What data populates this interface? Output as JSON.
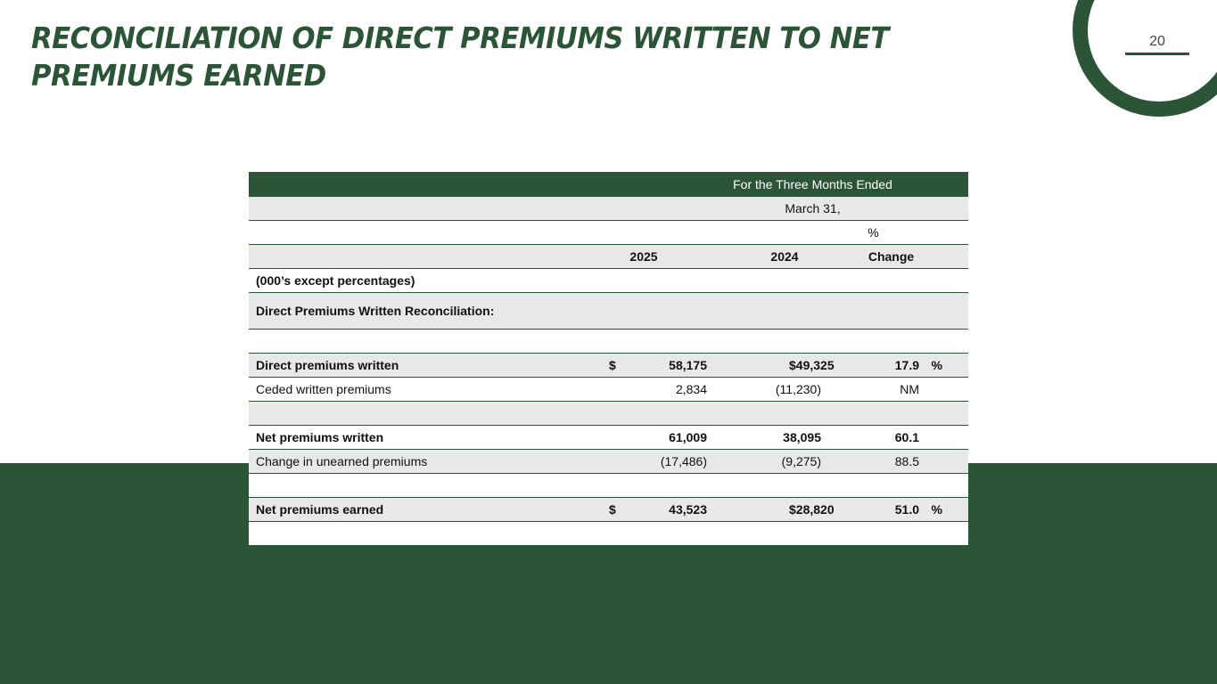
{
  "title": "RECONCILIATION OF DIRECT PREMIUMS WRITTEN TO NET PREMIUMS EARNED",
  "page_number": "20",
  "table": {
    "header_period": "For the Three Months Ended",
    "header_date": "March 31,",
    "header_pct": "%",
    "col_2025": "2025",
    "col_2024": "2024",
    "col_change": "Change",
    "units_note": "(000’s except percentages)",
    "section_label": "Direct Premiums Written Reconciliation:",
    "rows": [
      {
        "label": "Direct premiums written",
        "dollar": "$",
        "v2025": "58,175",
        "v2024": "49,325",
        "change": "17.9",
        "pct": "%"
      },
      {
        "label": "Ceded written premiums",
        "v2025": "2,834",
        "v2024": "(11,230)",
        "change": "NM"
      },
      {
        "label": "Net premiums written",
        "v2025": "61,009",
        "v2024": "38,095",
        "change": "60.1"
      },
      {
        "label": "Change in unearned premiums",
        "v2025": "(17,486)",
        "v2024": "(9,275)",
        "change": "88.5"
      },
      {
        "label": "Net premiums earned",
        "dollar": "$",
        "v2025": "43,523",
        "v2024": "28,820",
        "change": "51.0",
        "pct": "%"
      }
    ]
  }
}
